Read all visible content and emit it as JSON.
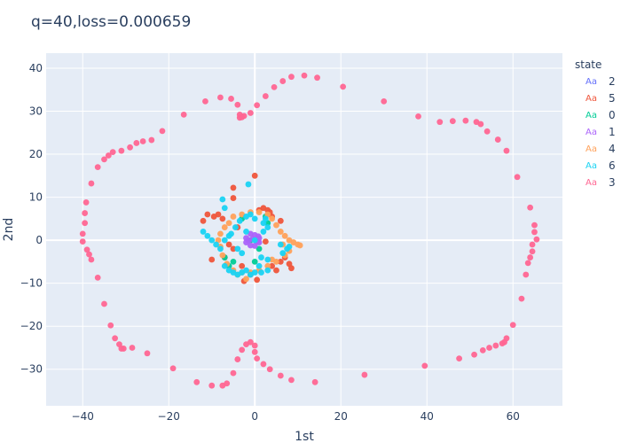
{
  "chart_data": {
    "type": "scatter",
    "title": "q=40,loss=0.000659",
    "xlabel": "1st",
    "ylabel": "2nd",
    "xlim": [
      -48.5,
      71.5
    ],
    "ylim": [
      -38.5,
      43.5
    ],
    "xticks": [
      -40,
      -20,
      0,
      20,
      40,
      60
    ],
    "yticks": [
      -30,
      -20,
      -10,
      0,
      10,
      20,
      30,
      40
    ],
    "grid": true,
    "legend": {
      "title": "state",
      "placement": "right"
    },
    "plot_bg": "#e5ecf6",
    "series": [
      {
        "name": "2",
        "color": "#636efa",
        "points": []
      },
      {
        "name": "5",
        "color": "#ef553b",
        "points": [
          [
            -12,
            4.5
          ],
          [
            -11,
            6
          ],
          [
            -9.5,
            5.5
          ],
          [
            -8.5,
            6
          ],
          [
            -7.5,
            5
          ],
          [
            -10,
            -4.5
          ],
          [
            -7,
            -4
          ],
          [
            -6,
            -1
          ],
          [
            -5,
            12.2
          ],
          [
            -5,
            9.8
          ],
          [
            -5,
            -2
          ],
          [
            -3,
            -6
          ],
          [
            -2.5,
            -9.5
          ],
          [
            -1,
            -8
          ],
          [
            0,
            15
          ],
          [
            0.5,
            -9.2
          ],
          [
            1,
            7
          ],
          [
            2,
            7.5
          ],
          [
            3,
            7
          ],
          [
            3.5,
            6.5
          ],
          [
            4,
            5.5
          ],
          [
            4,
            -6
          ],
          [
            5,
            -7
          ],
          [
            6,
            4.5
          ],
          [
            6,
            -5
          ],
          [
            7,
            -4
          ],
          [
            8,
            -5.5
          ],
          [
            8.5,
            -6.5
          ],
          [
            2.5,
            -0.3
          ],
          [
            -4,
            3
          ]
        ]
      },
      {
        "name": "0",
        "color": "#00cc96",
        "points": [
          [
            -6,
            -6
          ],
          [
            -5,
            -5
          ],
          [
            -7,
            -4
          ],
          [
            1,
            -2
          ],
          [
            -1,
            0
          ],
          [
            2.5,
            5.5
          ],
          [
            3,
            4
          ],
          [
            -3,
            5
          ],
          [
            0,
            -5
          ]
        ]
      },
      {
        "name": "1",
        "color": "#ab63fa",
        "points": [
          [
            -1,
            1.5
          ],
          [
            0,
            1.2
          ],
          [
            1,
            0.5
          ],
          [
            1,
            -0.5
          ],
          [
            0,
            -1.3
          ],
          [
            -1,
            -1.2
          ],
          [
            -2,
            -0.5
          ],
          [
            -2,
            0.5
          ],
          [
            -0.5,
            0.3
          ],
          [
            0.5,
            -0.3
          ],
          [
            -1.5,
            0
          ],
          [
            0.8,
            0.9
          ]
        ]
      },
      {
        "name": "4",
        "color": "#ffa15a",
        "points": [
          [
            -7,
            3
          ],
          [
            -6,
            4
          ],
          [
            -5,
            5.5
          ],
          [
            -3,
            6
          ],
          [
            -1,
            6.5
          ],
          [
            1,
            6.5
          ],
          [
            3,
            6
          ],
          [
            4,
            5
          ],
          [
            5,
            3.5
          ],
          [
            6,
            2
          ],
          [
            7,
            1
          ],
          [
            8,
            0
          ],
          [
            9,
            -0.5
          ],
          [
            10,
            -1
          ],
          [
            10.5,
            -1.2
          ],
          [
            8,
            -2.5
          ],
          [
            7,
            -3.5
          ],
          [
            5,
            -5
          ],
          [
            3,
            -6
          ],
          [
            1,
            -7
          ],
          [
            -1,
            -7.5
          ],
          [
            -3,
            -7.5
          ],
          [
            -5,
            -7
          ],
          [
            -6.5,
            -5.5
          ],
          [
            -7.5,
            -3.5
          ],
          [
            -8,
            -1.5
          ],
          [
            -8.5,
            0
          ],
          [
            -8,
            1.5
          ],
          [
            -4,
            -8
          ],
          [
            -2,
            -9
          ],
          [
            4,
            -4.5
          ],
          [
            6.5,
            -1
          ]
        ]
      },
      {
        "name": "6",
        "color": "#19d3f3",
        "points": [
          [
            -12,
            2
          ],
          [
            -11,
            1
          ],
          [
            -10,
            0
          ],
          [
            -9,
            -1
          ],
          [
            -8,
            -2
          ],
          [
            -7.5,
            9.5
          ],
          [
            -7,
            7.5
          ],
          [
            -7,
            -6
          ],
          [
            -6,
            -7
          ],
          [
            -5,
            -7.5
          ],
          [
            -4,
            -8
          ],
          [
            -3,
            -7.5
          ],
          [
            -2,
            -7
          ],
          [
            -1.5,
            13
          ],
          [
            -1,
            -8
          ],
          [
            0,
            -7.5
          ],
          [
            1,
            -6
          ],
          [
            1.5,
            -4
          ],
          [
            2,
            2
          ],
          [
            2,
            4
          ],
          [
            2.5,
            5
          ],
          [
            3,
            3
          ],
          [
            0,
            5
          ],
          [
            -1,
            6
          ],
          [
            -2,
            5.5
          ],
          [
            -3.5,
            4.5
          ],
          [
            -4.5,
            3
          ],
          [
            -5.5,
            1.5
          ],
          [
            6.5,
            -3
          ],
          [
            7.5,
            -2
          ],
          [
            8,
            -1.5
          ],
          [
            6,
            -1
          ],
          [
            -4,
            -2
          ],
          [
            -3,
            -3
          ],
          [
            1.5,
            -7.5
          ],
          [
            3,
            -7
          ],
          [
            -6,
            1
          ],
          [
            -7,
            0
          ],
          [
            0,
            0
          ],
          [
            -2,
            2
          ],
          [
            3,
            -4.5
          ]
        ]
      },
      {
        "name": "3",
        "color": "#ff6692",
        "points": [
          [
            -40,
            1.5
          ],
          [
            -40,
            -0.3
          ],
          [
            -39.5,
            4
          ],
          [
            -39.5,
            6.3
          ],
          [
            -39.2,
            8.8
          ],
          [
            -39,
            -2.2
          ],
          [
            -38.5,
            -3.3
          ],
          [
            -38,
            -4.5
          ],
          [
            -38,
            13.2
          ],
          [
            -36.5,
            17
          ],
          [
            -36.5,
            -8.7
          ],
          [
            -35,
            -14.8
          ],
          [
            -35,
            18.8
          ],
          [
            -34,
            19.7
          ],
          [
            -33.5,
            -19.8
          ],
          [
            -33,
            20.5
          ],
          [
            -32.5,
            -22.8
          ],
          [
            -31.5,
            -24.2
          ],
          [
            -31,
            -25.2
          ],
          [
            -31,
            20.8
          ],
          [
            -30.5,
            -25.2
          ],
          [
            -29,
            21.6
          ],
          [
            -28.5,
            -25
          ],
          [
            -27.5,
            22.6
          ],
          [
            -26,
            23
          ],
          [
            -25,
            -26.3
          ],
          [
            -24,
            23.3
          ],
          [
            -21.5,
            25.4
          ],
          [
            -19,
            -29.8
          ],
          [
            -16.5,
            29.2
          ],
          [
            -13.5,
            -33
          ],
          [
            -11.5,
            32.3
          ],
          [
            -10,
            -33.8
          ],
          [
            -8,
            33.2
          ],
          [
            -7.5,
            -33.8
          ],
          [
            -6.5,
            -33.3
          ],
          [
            -5.5,
            32.9
          ],
          [
            -5,
            -30.9
          ],
          [
            -4,
            -27.7
          ],
          [
            -4,
            31.5
          ],
          [
            -3.5,
            28.5
          ],
          [
            -3.5,
            29.2
          ],
          [
            -3,
            28.6
          ],
          [
            -3,
            -25.5
          ],
          [
            -2.5,
            28.9
          ],
          [
            -2,
            -24.2
          ],
          [
            -1,
            -23.7
          ],
          [
            -1,
            29.6
          ],
          [
            0,
            -24.5
          ],
          [
            0,
            -26
          ],
          [
            0.5,
            31.4
          ],
          [
            0.5,
            -27.5
          ],
          [
            2,
            -28.8
          ],
          [
            2.5,
            33.5
          ],
          [
            3.5,
            -30
          ],
          [
            4.5,
            35.6
          ],
          [
            6,
            -31.5
          ],
          [
            6.5,
            37
          ],
          [
            8.5,
            -32.5
          ],
          [
            8.5,
            38
          ],
          [
            11.5,
            38.3
          ],
          [
            14,
            -33
          ],
          [
            14.5,
            37.8
          ],
          [
            20.5,
            35.7
          ],
          [
            25.5,
            -31.3
          ],
          [
            30,
            32.3
          ],
          [
            38,
            28.8
          ],
          [
            39.5,
            -29.2
          ],
          [
            43,
            27.5
          ],
          [
            46,
            27.7
          ],
          [
            47.5,
            -27.5
          ],
          [
            49,
            27.8
          ],
          [
            51,
            -26.6
          ],
          [
            51.5,
            27.5
          ],
          [
            52.5,
            27
          ],
          [
            53,
            -25.6
          ],
          [
            54,
            25.3
          ],
          [
            54.5,
            -25
          ],
          [
            56,
            -24.5
          ],
          [
            56.5,
            23.4
          ],
          [
            57.5,
            -24
          ],
          [
            58,
            -23.7
          ],
          [
            58.5,
            20.8
          ],
          [
            58.5,
            -22.8
          ],
          [
            60,
            -19.7
          ],
          [
            61,
            14.7
          ],
          [
            62,
            -13.6
          ],
          [
            63,
            -8
          ],
          [
            63.5,
            -5.3
          ],
          [
            64,
            7.6
          ],
          [
            64,
            -4
          ],
          [
            64.5,
            -2.6
          ],
          [
            64.5,
            -1
          ],
          [
            65,
            3.5
          ],
          [
            65,
            1.9
          ],
          [
            65.5,
            0.2
          ]
        ]
      }
    ]
  }
}
